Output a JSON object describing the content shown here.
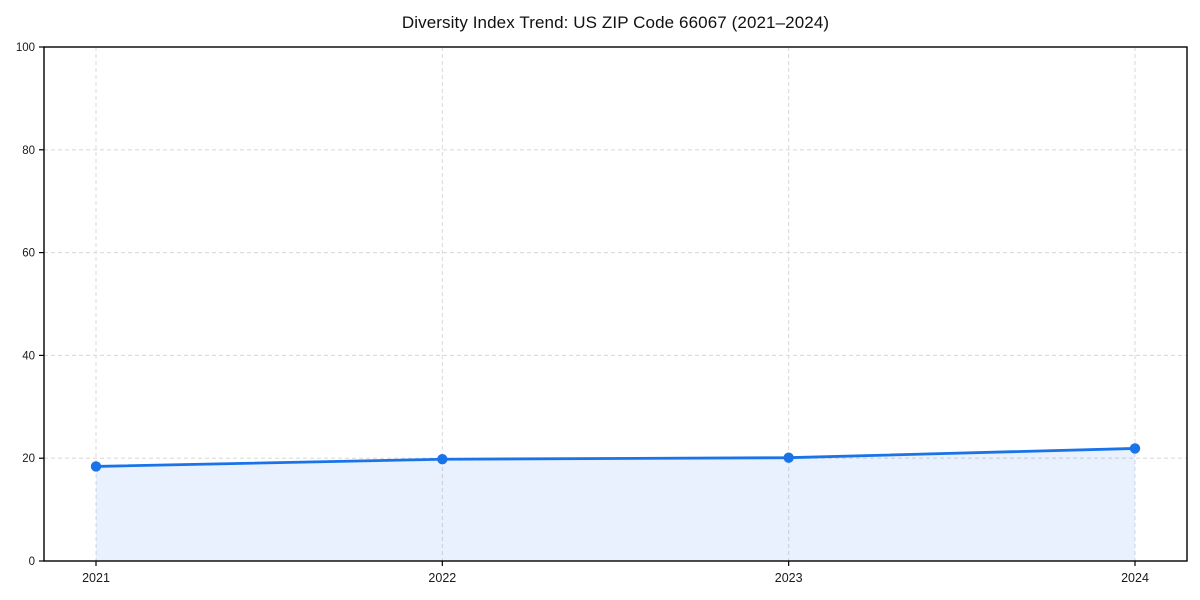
{
  "chart_data": {
    "type": "area",
    "title": "Diversity Index Trend: US ZIP Code 66067 (2021–2024)",
    "series_name": "Diversity Index",
    "categories": [
      "2021",
      "2022",
      "2023",
      "2024"
    ],
    "x": [
      2021,
      2022,
      2023,
      2024
    ],
    "values": [
      18.4,
      19.8,
      20.1,
      21.9
    ],
    "xlabel": "",
    "ylabel": "",
    "ylim": [
      0,
      100
    ],
    "yticks": [
      0,
      20,
      40,
      60,
      80,
      100
    ],
    "grid": true,
    "grid_style": "dashed",
    "legend": "none",
    "colors": {
      "line": "#1a73e8",
      "marker": "#1a73e8",
      "fill": "rgba(26,115,232,0.10)",
      "grid": "#dcdcdc",
      "axis": "#000000",
      "tick_label": "#1a1a1a",
      "title": "#111111",
      "background": "#ffffff"
    }
  }
}
